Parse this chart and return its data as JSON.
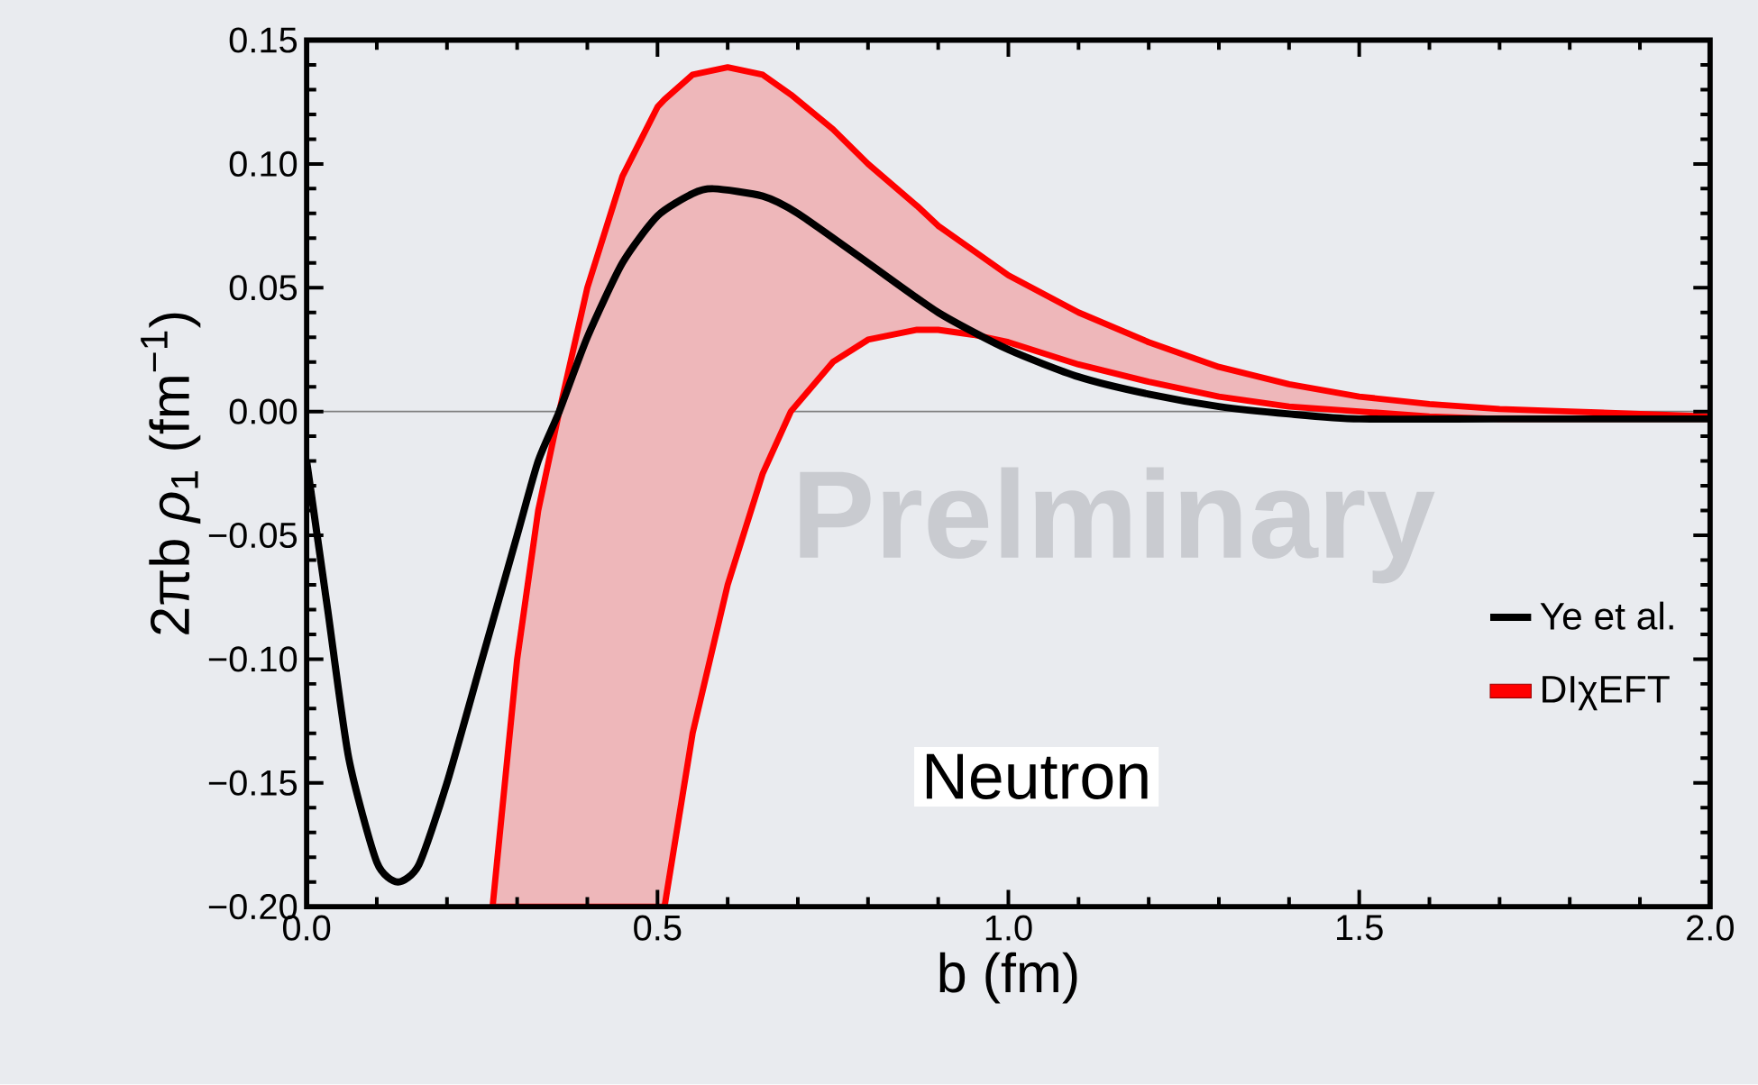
{
  "chart_data": {
    "type": "line",
    "xlabel": "b (fm)",
    "ylabel": "2πb *ρ*$_{1}$ (fm$^{−1}$)",
    "xlim": [
      0,
      2.0
    ],
    "ylim": [
      -0.2,
      0.15
    ],
    "xticks": [
      {
        "value": 0,
        "label": "0.0"
      },
      {
        "value": 0.5,
        "label": "0.5"
      },
      {
        "value": 1.0,
        "label": "1.0"
      },
      {
        "value": 1.5,
        "label": "1.5"
      },
      {
        "value": 2.0,
        "label": "2.0"
      }
    ],
    "yticks": [
      {
        "value": -0.2,
        "label": "−0.20"
      },
      {
        "value": -0.15,
        "label": "−0.15"
      },
      {
        "value": -0.1,
        "label": "−0.10"
      },
      {
        "value": -0.05,
        "label": "−0.05"
      },
      {
        "value": 0,
        "label": "0.00"
      },
      {
        "value": 0.05,
        "label": "0.05"
      },
      {
        "value": 0.1,
        "label": "0.10"
      },
      {
        "value": 0.15,
        "label": "0.15"
      }
    ],
    "series": [
      {
        "name": "DIχEFT",
        "type": "line",
        "color": "#ff0000",
        "x": [
          0.265,
          0.3,
          0.33,
          0.36,
          0.4,
          0.45,
          0.5,
          0.51,
          0.55,
          0.6,
          0.65,
          0.69,
          0.75,
          0.8,
          0.87,
          0.9,
          0.95,
          1.0,
          1.1,
          1.2,
          1.3,
          1.4,
          1.5,
          1.6,
          1.7,
          1.8,
          1.9,
          2.0
        ],
        "lower": [
          -0.2,
          -0.2,
          -0.2,
          -0.2,
          -0.2,
          -0.2,
          -0.2,
          -0.2,
          -0.13,
          -0.07,
          -0.025,
          0.0,
          0.02,
          0.029,
          0.033,
          0.033,
          0.031,
          0.028,
          0.019,
          0.012,
          0.006,
          0.002,
          0.0,
          -0.002,
          -0.003,
          -0.003,
          -0.003,
          -0.003
        ],
        "values": [
          null,
          null,
          null,
          null,
          null,
          null,
          null,
          null,
          null,
          null,
          null,
          null,
          null,
          null,
          null,
          null,
          null,
          null,
          null,
          null,
          null,
          null,
          null,
          null,
          null,
          null,
          null,
          null
        ],
        "upper": [
          -0.2,
          -0.1,
          -0.04,
          0.0,
          0.05,
          0.095,
          0.123,
          0.126,
          0.136,
          0.139,
          0.136,
          0.128,
          0.114,
          0.1,
          0.083,
          0.075,
          0.065,
          0.055,
          0.04,
          0.028,
          0.018,
          0.011,
          0.006,
          0.003,
          0.001,
          0.0,
          -0.001,
          -0.002
        ]
      },
      {
        "name": "Ye et al.",
        "color": "#000000",
        "x": [
          0,
          0.03,
          0.06,
          0.1,
          0.13,
          0.16,
          0.2,
          0.25,
          0.3,
          0.33,
          0.36,
          0.4,
          0.45,
          0.5,
          0.55,
          0.58,
          0.65,
          0.7,
          0.8,
          0.9,
          1.0,
          1.1,
          1.2,
          1.3,
          1.4,
          1.5,
          1.7,
          2.0
        ],
        "values": [
          -0.02,
          -0.08,
          -0.14,
          -0.182,
          -0.19,
          -0.183,
          -0.15,
          -0.1,
          -0.05,
          -0.02,
          0.0,
          0.03,
          0.06,
          0.079,
          0.088,
          0.09,
          0.087,
          0.08,
          0.06,
          0.04,
          0.025,
          0.014,
          0.007,
          0.002,
          -0.001,
          -0.003,
          -0.003,
          -0.003
        ]
      }
    ],
    "ref_lines": [
      {
        "axis": "y",
        "value": 0,
        "color": "#808080"
      }
    ],
    "annotations": [
      "Neutron",
      "Prelminary"
    ],
    "legend": "bottom right"
  }
}
